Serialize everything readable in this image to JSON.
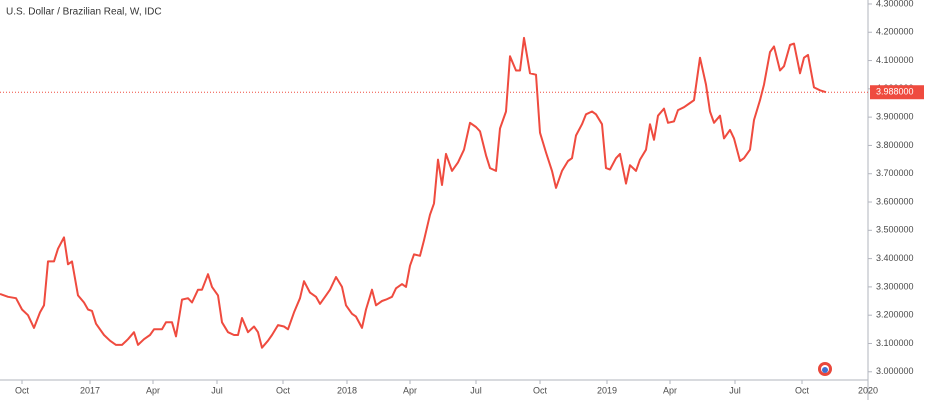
{
  "chart_data": {
    "type": "line",
    "title": "U.S. Dollar / Brazilian Real, W, IDC",
    "series": [
      {
        "name": "USD/BRL",
        "color": "#ef4b3f",
        "x": [
          0,
          1.6,
          3.2,
          4.4,
          5.6,
          6.8,
          8,
          8.8,
          9.6,
          10.8,
          11.6,
          12.8,
          13.6,
          14.4,
          15.6,
          16.8,
          17.6,
          18.4,
          19.2,
          20.8,
          22,
          23.2,
          24.4,
          25.6,
          26.8,
          27.6,
          28.8,
          30,
          30.8,
          32.4,
          33.2,
          34.4,
          35.2,
          36.4,
          37.6,
          38.4,
          39.6,
          40.4,
          41.6,
          42.4,
          43.6,
          44.4,
          45.6,
          46.8,
          47.6,
          48.4,
          49.6,
          50.8,
          51.6,
          52.4,
          53.6,
          54.4,
          55.6,
          56.8,
          57.6,
          58.8,
          60,
          60.8,
          62,
          63.2,
          64,
          65.2,
          66,
          67.2,
          68.4,
          69.2,
          70.4,
          71.2,
          72.4,
          73.2,
          74.4,
          75.2,
          76.4,
          77.2,
          78.4,
          79.2,
          80.4,
          81.2,
          82,
          82.8,
          84,
          84.8,
          86,
          86.8,
          87.6,
          88.4,
          89.2,
          90.4,
          91.6,
          92.8,
          94,
          95.2,
          96,
          97.2,
          98,
          99.2,
          100,
          101.2,
          102,
          103.2,
          104,
          104.8,
          106,
          107.2,
          108,
          109.2,
          110.4,
          111.2,
          112.4,
          113.6,
          114.4,
          115.2,
          116.4,
          117.2,
          118.4,
          119.2,
          120.4,
          121.2,
          122,
          123.2,
          124,
          125.2,
          126,
          127.2,
          128,
          129.2,
          130,
          130.8,
          131.6,
          132.8,
          133.6,
          134.8,
          135.6,
          136.8,
          138,
          138.8,
          140,
          141.2,
          142,
          142.8,
          144,
          144.8,
          146,
          146.8,
          148,
          148.8,
          150,
          150.8,
          152,
          152.8,
          154,
          154.8,
          156,
          156.8,
          158,
          158.8,
          160,
          160.8,
          161.6,
          162.8,
          164,
          165.2
        ],
        "values": [
          3.275,
          3.265,
          3.26,
          3.22,
          3.2,
          3.155,
          3.21,
          3.235,
          3.39,
          3.39,
          3.435,
          3.475,
          3.38,
          3.39,
          3.27,
          3.245,
          3.22,
          3.215,
          3.17,
          3.13,
          3.11,
          3.095,
          3.095,
          3.115,
          3.14,
          3.095,
          3.115,
          3.13,
          3.15,
          3.15,
          3.175,
          3.175,
          3.125,
          3.255,
          3.26,
          3.245,
          3.29,
          3.29,
          3.345,
          3.3,
          3.27,
          3.175,
          3.14,
          3.13,
          3.13,
          3.19,
          3.14,
          3.16,
          3.14,
          3.085,
          3.11,
          3.13,
          3.165,
          3.16,
          3.15,
          3.21,
          3.26,
          3.32,
          3.28,
          3.265,
          3.24,
          3.27,
          3.29,
          3.335,
          3.3,
          3.235,
          3.205,
          3.195,
          3.155,
          3.22,
          3.29,
          3.235,
          3.25,
          3.255,
          3.265,
          3.295,
          3.31,
          3.3,
          3.375,
          3.415,
          3.41,
          3.465,
          3.555,
          3.595,
          3.75,
          3.66,
          3.77,
          3.71,
          3.74,
          3.785,
          3.88,
          3.865,
          3.85,
          3.765,
          3.72,
          3.71,
          3.86,
          3.92,
          4.115,
          4.065,
          4.065,
          4.18,
          4.055,
          4.05,
          3.845,
          3.775,
          3.71,
          3.65,
          3.71,
          3.745,
          3.755,
          3.835,
          3.875,
          3.91,
          3.92,
          3.91,
          3.875,
          3.72,
          3.715,
          3.755,
          3.77,
          3.665,
          3.73,
          3.71,
          3.75,
          3.785,
          3.875,
          3.82,
          3.905,
          3.93,
          3.88,
          3.885,
          3.925,
          3.935,
          3.95,
          3.96,
          4.11,
          4.015,
          3.92,
          3.88,
          3.905,
          3.825,
          3.855,
          3.825,
          3.745,
          3.755,
          3.785,
          3.89,
          3.96,
          4.015,
          4.13,
          4.15,
          4.065,
          4.08,
          4.155,
          4.16,
          4.055,
          4.11,
          4.12,
          4.005,
          3.995,
          3.988
        ]
      }
    ],
    "xlim": [
      0,
      173.6
    ],
    "xticks": [
      {
        "value": 4.4,
        "label": "Oct"
      },
      {
        "value": 18,
        "label": "2017"
      },
      {
        "value": 30.6,
        "label": "Apr"
      },
      {
        "value": 43.4,
        "label": "Jul"
      },
      {
        "value": 56.6,
        "label": "Oct"
      },
      {
        "value": 69.4,
        "label": "2018"
      },
      {
        "value": 82,
        "label": "Apr"
      },
      {
        "value": 95.2,
        "label": "Jul"
      },
      {
        "value": 108,
        "label": "Oct"
      },
      {
        "value": 121.4,
        "label": "2019"
      },
      {
        "value": 134,
        "label": "Apr"
      },
      {
        "value": 147,
        "label": "Jul"
      },
      {
        "value": 160.4,
        "label": "Oct"
      },
      {
        "value": 173.6,
        "label": "2020"
      }
    ],
    "ylim": [
      2.978,
      4.314
    ],
    "yticks": [
      {
        "value": 3.0,
        "label": "3.000000"
      },
      {
        "value": 3.1,
        "label": "3.100000"
      },
      {
        "value": 3.2,
        "label": "3.200000"
      },
      {
        "value": 3.3,
        "label": "3.300000"
      },
      {
        "value": 3.4,
        "label": "3.400000"
      },
      {
        "value": 3.5,
        "label": "3.500000"
      },
      {
        "value": 3.6,
        "label": "3.600000"
      },
      {
        "value": 3.7,
        "label": "3.700000"
      },
      {
        "value": 3.8,
        "label": "3.800000"
      },
      {
        "value": 3.9,
        "label": "3.900000"
      },
      {
        "value": 4.0,
        "label": "4.000000"
      },
      {
        "value": 4.1,
        "label": "4.100000"
      },
      {
        "value": 4.2,
        "label": "4.200000"
      },
      {
        "value": 4.3,
        "label": "4.300000"
      }
    ],
    "last_price": {
      "value": 3.988,
      "label": "3.988000"
    }
  }
}
